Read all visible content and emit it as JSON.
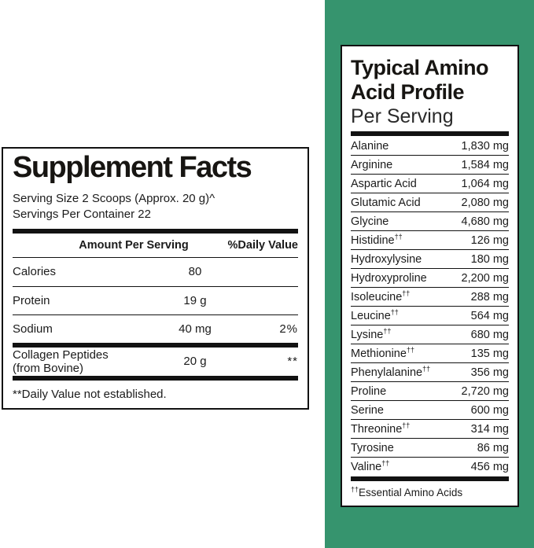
{
  "colors": {
    "background_green": "#36946E",
    "panel_background": "#ffffff",
    "rule_black": "#121212"
  },
  "supplement_facts": {
    "title": "Supplement Facts",
    "serving_size": "Serving Size 2 Scoops (Approx. 20 g)^",
    "servings_per_container": "Servings Per Container 22",
    "columns": {
      "amount_header": "Amount Per Serving",
      "daily_value_header": "%Daily Value"
    },
    "rows": [
      {
        "name": "Calories",
        "amount": "80",
        "dv": ""
      },
      {
        "name": "Protein",
        "amount": "19 g",
        "dv": ""
      },
      {
        "name": "Sodium",
        "amount": "40 mg",
        "dv": "2%"
      },
      {
        "name": "Collagen Peptides (from Bovine)",
        "amount": "20 g",
        "dv": "**",
        "thick_divider_before": true
      }
    ],
    "footnote": "**Daily Value not established."
  },
  "amino_profile": {
    "title_line1": "Typical Amino",
    "title_line2": "Acid Profile",
    "subtitle": "Per Serving",
    "rows": [
      {
        "name": "Alanine",
        "value": "1,830 mg"
      },
      {
        "name": "Arginine",
        "value": "1,584 mg"
      },
      {
        "name": "Aspartic Acid",
        "value": "1,064 mg"
      },
      {
        "name": "Glutamic Acid",
        "value": "2,080 mg"
      },
      {
        "name": "Glycine",
        "value": "4,680 mg"
      },
      {
        "name": "Histidine††",
        "value": "126 mg"
      },
      {
        "name": "Hydroxylysine",
        "value": "180 mg"
      },
      {
        "name": "Hydroxyproline",
        "value": "2,200 mg"
      },
      {
        "name": "Isoleucine††",
        "value": "288 mg"
      },
      {
        "name": "Leucine††",
        "value": "564 mg"
      },
      {
        "name": "Lysine††",
        "value": "680 mg"
      },
      {
        "name": "Methionine††",
        "value": "135 mg"
      },
      {
        "name": "Phenylalanine††",
        "value": "356 mg"
      },
      {
        "name": "Proline",
        "value": "2,720 mg"
      },
      {
        "name": "Serine",
        "value": "600 mg"
      },
      {
        "name": "Threonine††",
        "value": "314 mg"
      },
      {
        "name": "Tyrosine",
        "value": "86 mg"
      },
      {
        "name": "Valine††",
        "value": "456 mg"
      }
    ],
    "footnote": "††Essential Amino Acids"
  }
}
